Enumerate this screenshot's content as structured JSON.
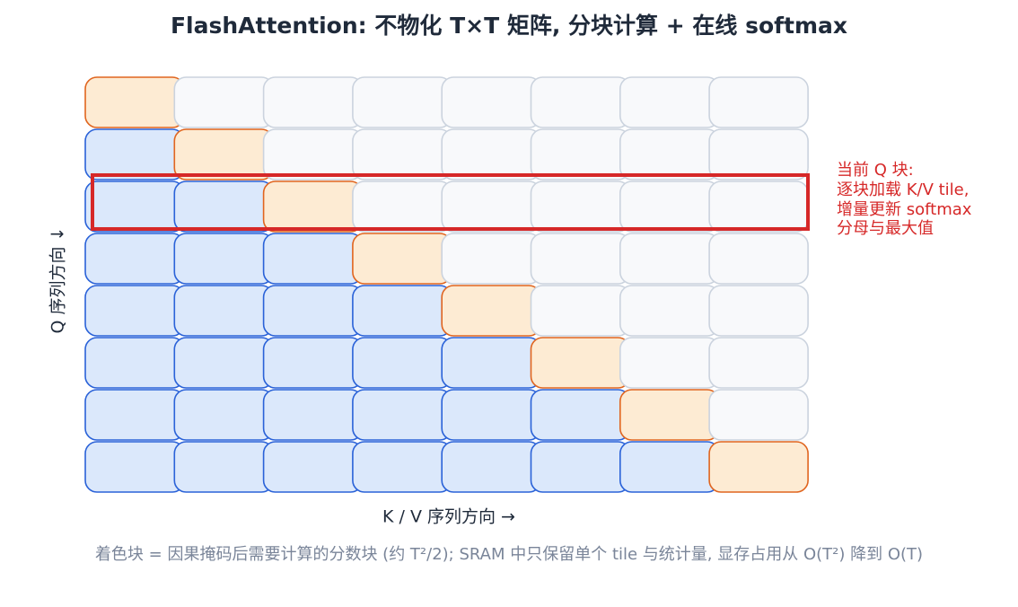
{
  "header": {
    "title": "FlashAttention: 不物化 T×T 矩阵, 分块计算 + 在线 softmax"
  },
  "axes": {
    "x_label": "K / V 序列方向 →",
    "y_label": "Q 序列方向 ↓"
  },
  "annotation": {
    "lines": [
      "当前 Q 块:",
      "逐块加载 K/V tile,",
      "增量更新 softmax",
      "分母与最大值"
    ]
  },
  "footnote": "着色块 = 因果掩码后需要计算的分数块 (约 T²/2); SRAM 中只保留单个 tile 与统计量, 显存占用从 O(T²) 降到 O(T)"
}
